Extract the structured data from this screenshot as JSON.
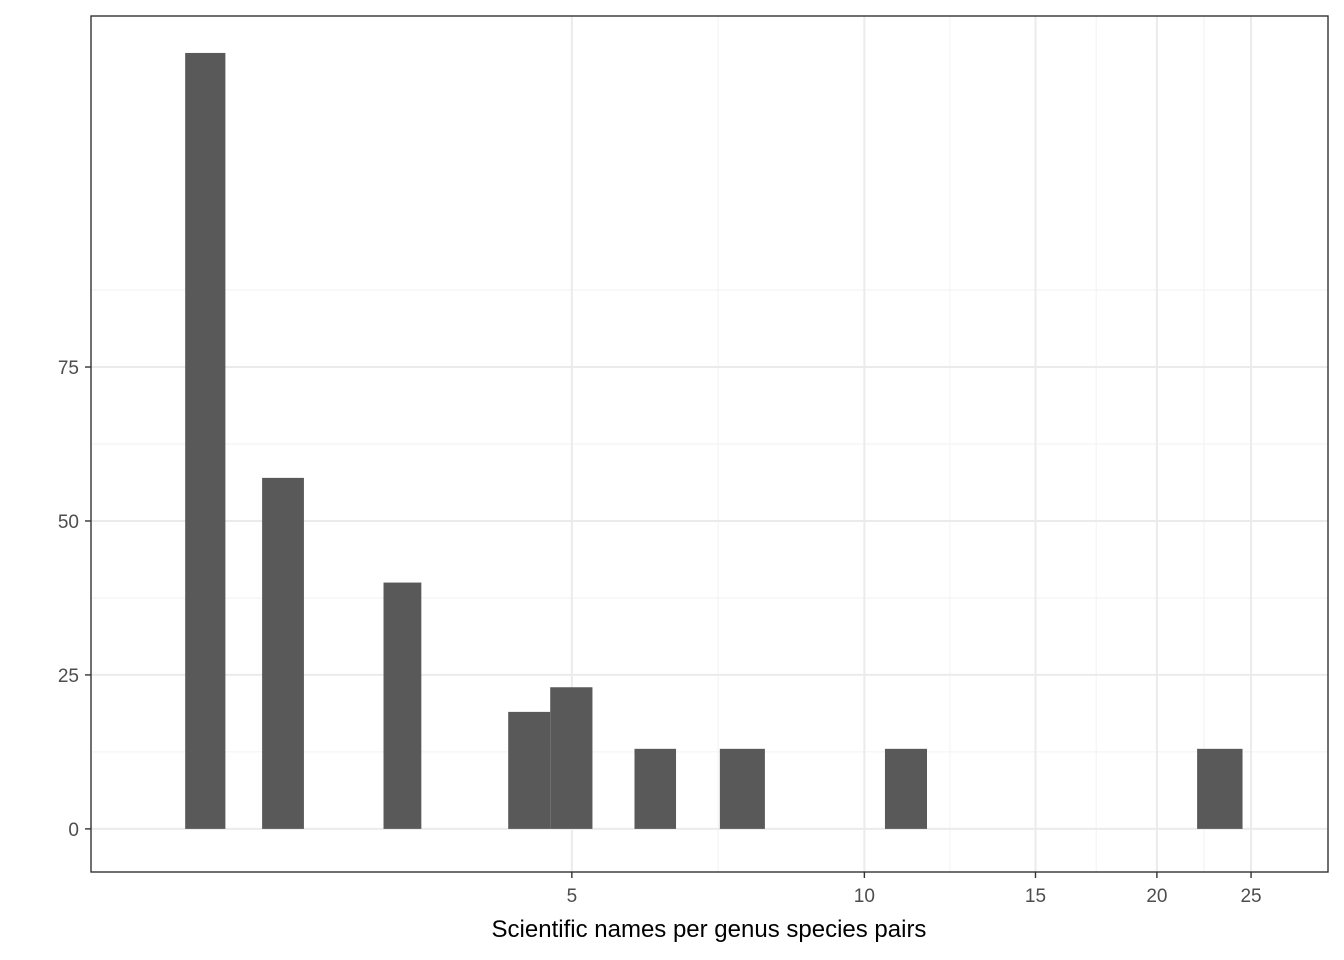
{
  "chart_data": {
    "type": "bar",
    "title": "",
    "xlabel": "Scientific names per genus species pairs",
    "ylabel": "",
    "x_scale": "log",
    "x_ticks": [
      5,
      10,
      15,
      20,
      25
    ],
    "x_tick_labels": [
      "5",
      "10",
      "15",
      "20",
      "25"
    ],
    "y_ticks": [
      0,
      25,
      50,
      75
    ],
    "y_tick_labels": [
      "0",
      "25",
      "50",
      "75"
    ],
    "xlim": [
      1.6,
      30
    ],
    "ylim": [
      -7,
      132
    ],
    "grid": true,
    "theme": "bw",
    "bar_color": "#595959",
    "bins": [
      {
        "x0": 2.0,
        "x1": 2.2,
        "count": 126
      },
      {
        "x0": 2.4,
        "x1": 2.65,
        "count": 57
      },
      {
        "x0": 3.2,
        "x1": 3.5,
        "count": 40
      },
      {
        "x0": 4.3,
        "x1": 4.75,
        "count": 19
      },
      {
        "x0": 4.75,
        "x1": 5.25,
        "count": 23
      },
      {
        "x0": 5.8,
        "x1": 6.4,
        "count": 13
      },
      {
        "x0": 7.1,
        "x1": 7.9,
        "count": 13
      },
      {
        "x0": 10.5,
        "x1": 11.6,
        "count": 13
      },
      {
        "x0": 22.0,
        "x1": 24.5,
        "count": 13
      }
    ]
  }
}
